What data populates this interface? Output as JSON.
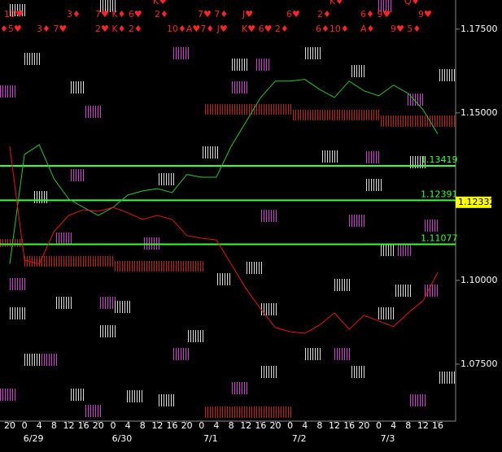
{
  "chart_data": {
    "type": "line",
    "categories": [
      "20",
      "0",
      "4",
      "8",
      "12",
      "16",
      "20",
      "0",
      "4",
      "8",
      "12",
      "16",
      "20",
      "0",
      "4",
      "8",
      "12",
      "16",
      "20",
      "0",
      "4",
      "8",
      "12",
      "16",
      "20",
      "0",
      "4",
      "8",
      "12",
      "16"
    ],
    "dates": [
      "6/29",
      "6/30",
      "7/1",
      "7/2",
      "7/3"
    ],
    "ylim": [
      1.058,
      1.1837
    ],
    "yticks": [
      {
        "value": 1.175,
        "label": "1.17500"
      },
      {
        "value": 1.15,
        "label": "1.15000"
      },
      {
        "value": 1.1,
        "label": "1.10000"
      },
      {
        "value": 1.075,
        "label": "1.07500"
      }
    ],
    "series": [
      {
        "name": "green",
        "color": "#22cc22",
        "values": [
          1.1049,
          1.1376,
          1.1405,
          1.1303,
          1.1243,
          1.1218,
          1.1194,
          1.1218,
          1.1255,
          1.1267,
          1.1274,
          1.1262,
          1.1316,
          1.1308,
          1.1308,
          1.14,
          1.1473,
          1.1546,
          1.1595,
          1.1595,
          1.16,
          1.157,
          1.1546,
          1.1595,
          1.1566,
          1.1551,
          1.1583,
          1.1558,
          1.151,
          1.1437
        ]
      },
      {
        "name": "red",
        "color": "#ee1111",
        "values": [
          1.14,
          1.1061,
          1.1049,
          1.1146,
          1.1194,
          1.1211,
          1.1206,
          1.1218,
          1.1202,
          1.1182,
          1.1194,
          1.1182,
          1.1134,
          1.1126,
          1.1121,
          1.1049,
          1.0976,
          1.0915,
          1.0859,
          1.0847,
          1.0842,
          1.0867,
          1.0903,
          1.0854,
          1.0896,
          1.0879,
          1.0862,
          1.0903,
          1.0939,
          1.1024
        ]
      }
    ],
    "levels": [
      {
        "value": 1.13419,
        "label": "1.13419"
      },
      {
        "value": 1.12391,
        "label": "1.12391"
      },
      {
        "value": 1.11077,
        "label": "1.11077"
      }
    ],
    "level_color": "#33ff33",
    "current_price": {
      "value": 1.12332,
      "label": "1.12332"
    },
    "top_row_1": [
      "10♥",
      "3♦",
      "7♥ K♦ 6♥",
      "2♦",
      "7♥ 7♦",
      "J♥",
      "6♥",
      "2♦",
      "6♦ 9♥",
      "9♥"
    ],
    "top_row_2": [
      "♦5♥",
      "3♦ 7♥",
      "2♥ K♦ 2♦",
      "10♦A♥7♦ J♥",
      "K♥ 6♥ 2♦",
      "6♦10♦",
      "A♦",
      "9♥ 5♦"
    ],
    "top_row_0": [
      "K♥",
      "K♦",
      "Q♦"
    ]
  }
}
